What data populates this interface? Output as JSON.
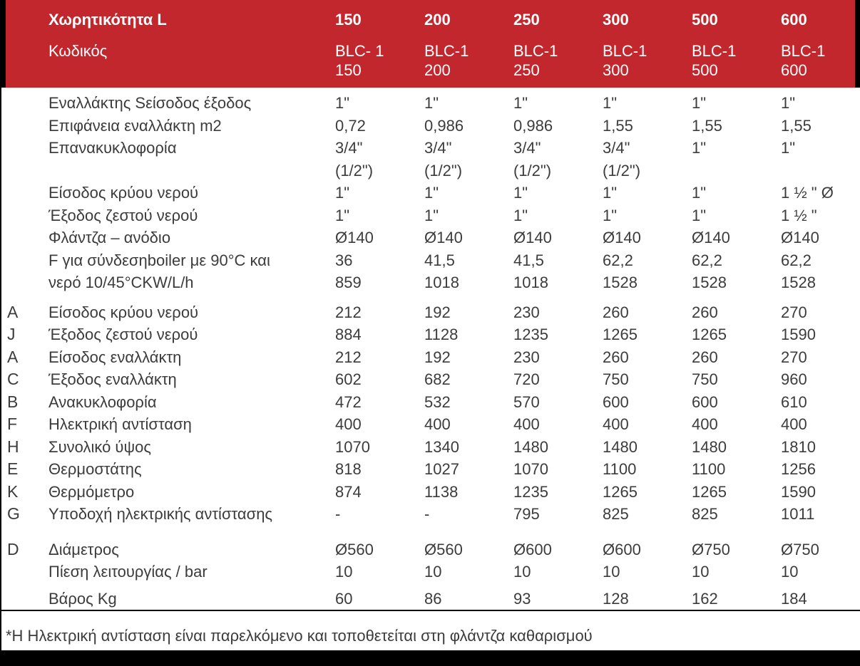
{
  "colors": {
    "header_bg": "#C1272D",
    "header_text": "#FFFFFF",
    "body_bg": "#FFFFFF",
    "body_text": "#3C3C3C",
    "frame": "#000000"
  },
  "header": {
    "capacity_label": "Χωρητικότητα L",
    "code_label": "Κωδικός",
    "capacities": [
      "150",
      "200",
      "250",
      "300",
      "500",
      "600"
    ],
    "codes": [
      "BLC- 1\n150",
      "BLC-1\n200",
      "BLC-1\n250",
      "BLC-1\n300",
      "BLC-1\n500",
      "BLC-1\n600"
    ]
  },
  "rows": [
    {
      "letter": "",
      "label": "Εναλλάκτης Sείσοδος έξοδος",
      "values": [
        "1\"",
        "1\"",
        "1\"",
        "1\"",
        "1\"",
        "1\""
      ]
    },
    {
      "letter": "",
      "label": "Επιφάνεια εναλλάκτη m2",
      "values": [
        "0,72",
        "0,986",
        "0,986",
        "1,55",
        "1,55",
        "1,55"
      ]
    },
    {
      "letter": "",
      "label": "Επανακυκλοφορία",
      "values": [
        "3/4\"\n(1/2\")",
        "3/4\"\n(1/2\")",
        "3/4\"\n(1/2\")",
        "3/4\"\n(1/2\")",
        "1\"",
        "1\""
      ]
    },
    {
      "letter": "",
      "label": "Είσοδος κρύου νερού",
      "values": [
        "1\"",
        "1\"",
        "1\"",
        "1\"",
        "1\"",
        "1 ½ \" Ø"
      ]
    },
    {
      "letter": "",
      "label": "Έξοδος ζεστού νερού",
      "values": [
        "1\"",
        "1\"",
        "1\"",
        "1\"",
        "1\"",
        "1 ½ \""
      ]
    },
    {
      "letter": "",
      "label": "Φλάντζα – ανόδιο",
      "values": [
        "Ø140",
        "Ø140",
        "Ø140",
        "Ø140",
        "Ø140",
        "Ø140"
      ]
    },
    {
      "letter": "",
      "label": "F για σύνδεσηboiler με 90°C και\nνερό 10/45°CKW/L/h",
      "values": [
        "36\n859",
        "41,5\n1018",
        "41,5\n1018",
        "62,2\n1528",
        "62,2\n1528",
        "62,2\n1528"
      ]
    },
    {
      "letter": "A",
      "label": "Είσοδος κρύου νερού",
      "values": [
        "212",
        "192",
        "230",
        "260",
        "260",
        "270"
      ],
      "gap": "md"
    },
    {
      "letter": "J",
      "label": "Έξοδος ζεστού νερού",
      "values": [
        "884",
        "1128",
        "1235",
        "1265",
        "1265",
        "1590"
      ]
    },
    {
      "letter": "A",
      "label": "Είσοδος εναλλάκτη",
      "values": [
        "212",
        "192",
        "230",
        "260",
        "260",
        "270"
      ]
    },
    {
      "letter": "C",
      "label": "Έξοδος εναλλάκτη",
      "values": [
        "602",
        "682",
        "720",
        "750",
        "750",
        "960"
      ]
    },
    {
      "letter": "B",
      "label": "Ανακυκλοφορία",
      "values": [
        "472",
        "532",
        "570",
        "600",
        "600",
        "610"
      ]
    },
    {
      "letter": "F",
      "label": "Ηλεκτρική αντίσταση",
      "values": [
        "400",
        "400",
        "400",
        "400",
        "400",
        "400"
      ]
    },
    {
      "letter": "H",
      "label": "Συνολικό ύψος",
      "values": [
        "1070",
        "1340",
        "1480",
        "1480",
        "1480",
        "1810"
      ]
    },
    {
      "letter": "E",
      "label": "Θερμοστάτης",
      "values": [
        "818",
        "1027",
        "1070",
        "1100",
        "1100",
        "1256"
      ]
    },
    {
      "letter": "K",
      "label": "Θερμόμετρο",
      "values": [
        "874",
        "1138",
        "1235",
        "1265",
        "1265",
        "1590"
      ]
    },
    {
      "letter": "G",
      "label": "Υποδοχή ηλεκτρικής αντίστασης",
      "values": [
        "-",
        "-",
        "795",
        "825",
        "825",
        "1011"
      ]
    },
    {
      "letter": "D",
      "label": "Διάμετρος",
      "values": [
        "Ø560",
        "Ø560",
        "Ø600",
        "Ø600",
        "Ø750",
        "Ø750"
      ],
      "gap": "lg"
    },
    {
      "letter": "",
      "label": "Πίεση λειτουργίας / bar",
      "values": [
        "10",
        "10",
        "10",
        "10",
        "10",
        "10"
      ]
    },
    {
      "letter": "",
      "label": "Βάρος Kg",
      "values": [
        "60",
        "86",
        "93",
        "128",
        "162",
        "184"
      ],
      "gap": "sm"
    }
  ],
  "footnote": "*Η Ηλεκτρική αντίσταση είναι παρελκόμενο και τοποθετείται στη φλάντζα καθαρισμού"
}
